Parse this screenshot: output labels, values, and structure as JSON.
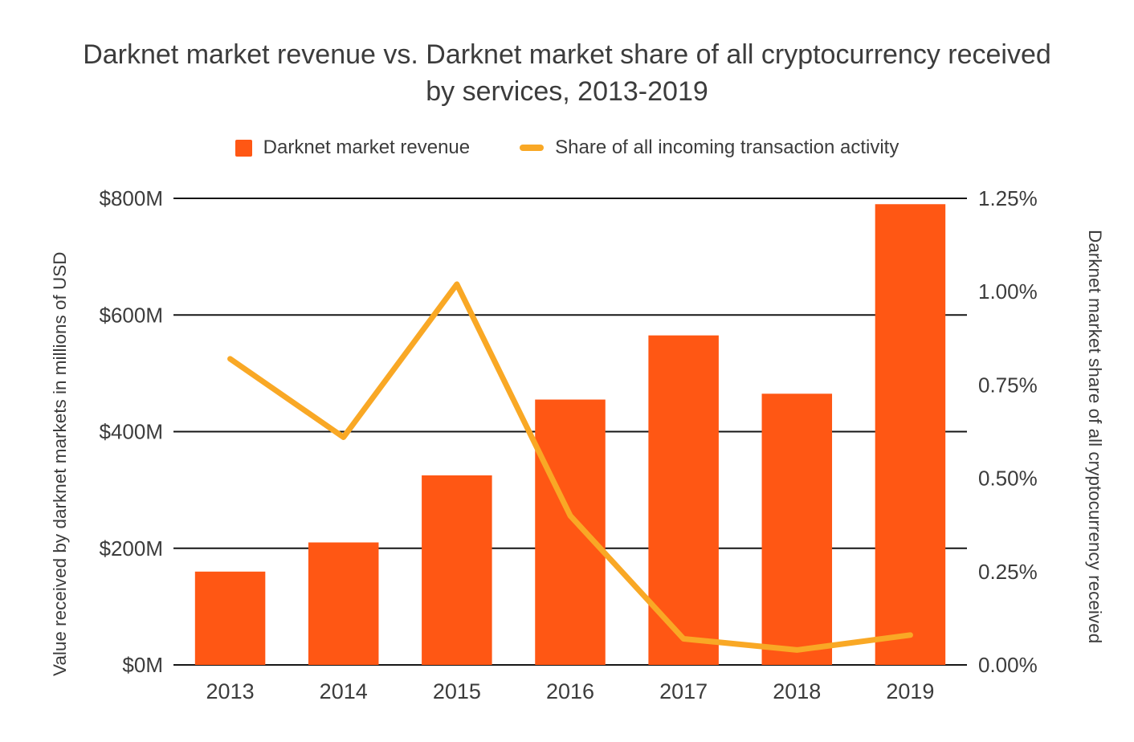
{
  "title": "Darknet market revenue vs. Darknet market share of all cryptocurrency received by services, 2013-2019",
  "legend": {
    "items": [
      {
        "label": "Darknet market revenue",
        "swatch": "bar-swatch"
      },
      {
        "label": "Share of all incoming transaction activity",
        "swatch": "line-swatch"
      }
    ]
  },
  "axes": {
    "left_title": "Value received by darknet markets in millions of USD",
    "right_title": "Darknet market share of all cryptocurrency received"
  },
  "chart_data": {
    "type": "combo",
    "title": "Darknet market revenue vs. Darknet market share of all cryptocurrency received by services, 2013-2019",
    "categories": [
      "2013",
      "2014",
      "2015",
      "2016",
      "2017",
      "2018",
      "2019"
    ],
    "series": [
      {
        "name": "Darknet market revenue",
        "type": "bar",
        "axis": "left",
        "unit": "millions of USD",
        "values": [
          160,
          210,
          325,
          455,
          565,
          465,
          790
        ]
      },
      {
        "name": "Share of all incoming transaction activity",
        "type": "line",
        "axis": "right",
        "unit": "percent",
        "values": [
          0.82,
          0.61,
          1.02,
          0.4,
          0.07,
          0.04,
          0.08
        ]
      }
    ],
    "left_axis": {
      "title": "Value received by darknet markets in millions of USD",
      "min": 0,
      "max": 800,
      "ticks": [
        {
          "value": 0,
          "label": "$0M"
        },
        {
          "value": 200,
          "label": "$200M"
        },
        {
          "value": 400,
          "label": "$400M"
        },
        {
          "value": 600,
          "label": "$600M"
        },
        {
          "value": 800,
          "label": "$800M"
        }
      ]
    },
    "right_axis": {
      "title": "Darknet market share of all cryptocurrency received",
      "min": 0,
      "max": 1.25,
      "ticks": [
        {
          "value": 0,
          "label": "0.00%"
        },
        {
          "value": 0.25,
          "label": "0.25%"
        },
        {
          "value": 0.5,
          "label": "0.50%"
        },
        {
          "value": 0.75,
          "label": "0.75%"
        },
        {
          "value": 1.0,
          "label": "1.00%"
        },
        {
          "value": 1.25,
          "label": "1.25%"
        }
      ]
    },
    "grid": true,
    "legend_position": "top",
    "colors": {
      "bar": "#FF5714",
      "line": "#F9A825",
      "grid": "#161616",
      "text": "#3c3c3c",
      "background": "#ffffff"
    }
  }
}
